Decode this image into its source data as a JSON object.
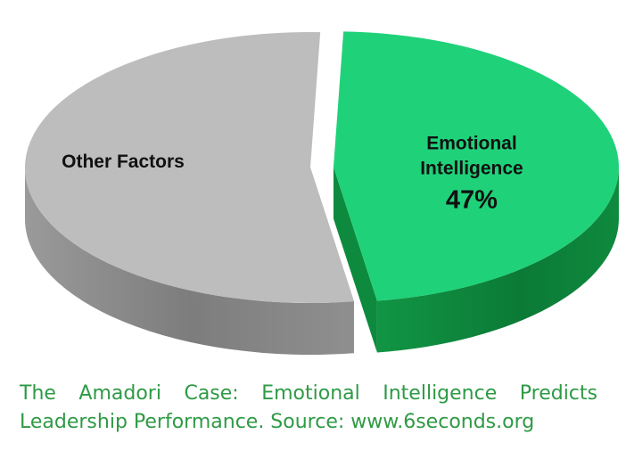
{
  "chart_data": {
    "type": "pie",
    "style": "3d-exploded",
    "slices": [
      {
        "label": "Emotional Intelligence",
        "label_lines": [
          "Emotional",
          "Intelligence"
        ],
        "value": 47,
        "value_label": "47%",
        "color": "#1fd27a",
        "side_color": "#0d8a3e",
        "exploded": true
      },
      {
        "label": "Other Factors",
        "label_lines": [
          "Other Factors"
        ],
        "value": 53,
        "value_label": "",
        "color": "#bdbdbd",
        "side_color": "#8d8d8d",
        "exploded": false
      }
    ]
  },
  "caption": {
    "line1": "The Amadori Case: Emotional Intelligence Predicts",
    "line2": "Leadership Performance.  Source: www.6seconds.org",
    "color": "#2e9a45"
  }
}
